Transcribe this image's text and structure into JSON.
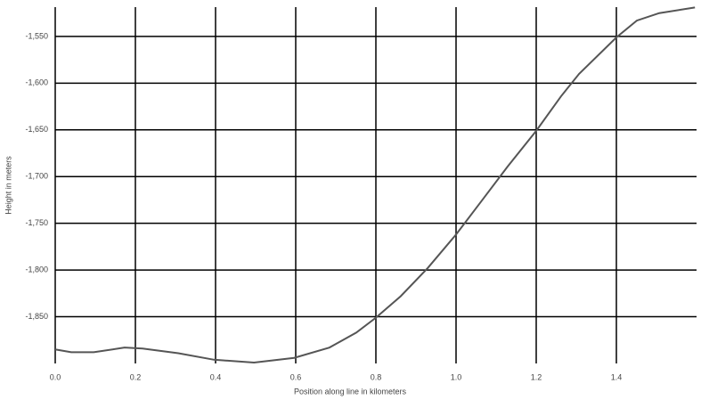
{
  "chart_data": {
    "type": "line",
    "xlabel": "Position along line in kilometers",
    "ylabel": "Height in meters",
    "x": [
      0,
      0.04,
      0.096,
      0.173,
      0.218,
      0.307,
      0.396,
      0.496,
      0.596,
      0.684,
      0.751,
      0.8,
      0.862,
      0.929,
      1.0,
      1.062,
      1.129,
      1.2,
      1.262,
      1.307,
      1.4,
      1.451,
      1.507,
      1.596
    ],
    "series": [
      {
        "color": "#555555",
        "values": [
          -1885,
          -1888,
          -1888,
          -1883,
          -1884,
          -1889,
          -1896,
          -1899,
          -1894,
          -1883,
          -1867,
          -1851,
          -1828,
          -1798,
          -1762,
          -1727,
          -1689,
          -1651,
          -1614,
          -1590,
          -1551,
          -1533,
          -1525,
          -1519
        ]
      }
    ],
    "xlim": [
      0,
      1.6
    ],
    "ylim": [
      -1900,
      -1518.6
    ],
    "xticks": [
      {
        "value": 0,
        "label": "0.0"
      },
      0.2,
      0.4,
      0.6,
      0.8,
      {
        "value": 1,
        "label": "1.0"
      },
      1.2,
      1.4
    ],
    "yticks": [
      {
        "value": -1550,
        "label": "-1,550"
      },
      {
        "value": -1600,
        "label": "-1,600"
      },
      {
        "value": -1650,
        "label": "-1,650"
      },
      {
        "value": -1700,
        "label": "-1,700"
      },
      {
        "value": -1750,
        "label": "-1,750"
      },
      {
        "value": -1800,
        "label": "-1,800"
      },
      {
        "value": -1850,
        "label": "-1,850"
      }
    ],
    "grid": true,
    "grid_color": "#000000"
  }
}
